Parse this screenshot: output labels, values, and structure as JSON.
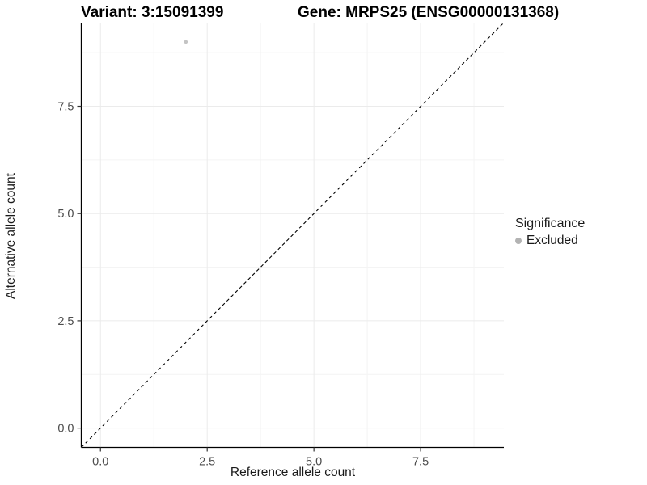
{
  "chart_data": {
    "type": "scatter",
    "title_left": "Variant: 3:15091399",
    "title_right": "Gene: MRPS25 (ENSG00000131368)",
    "xlabel": "Reference allele count",
    "ylabel": "Alternative allele count",
    "xlim": [
      -0.45,
      9.45
    ],
    "ylim": [
      -0.45,
      9.45
    ],
    "x_major_ticks": [
      0,
      2.5,
      5,
      7.5
    ],
    "x_tick_labels": [
      "0.0",
      "2.5",
      "5.0",
      "7.5"
    ],
    "y_major_ticks": [
      0,
      2.5,
      5,
      7.5
    ],
    "y_tick_labels": [
      "0.0",
      "2.5",
      "5.0",
      "7.5"
    ],
    "x_minor_ticks": [
      1.25,
      3.75,
      6.25,
      8.75
    ],
    "y_minor_ticks": [
      1.25,
      3.75,
      6.25,
      8.75
    ],
    "grid": "major+minor",
    "legend": {
      "title": "Significance",
      "position": "right",
      "items": [
        {
          "label": "Excluded",
          "color": "#b3b3b3",
          "marker": "circle"
        }
      ]
    },
    "series": [
      {
        "name": "Excluded",
        "marker": "circle",
        "color": "#c4c4c4",
        "point_radius": 2.3,
        "points": [
          [
            2,
            9
          ]
        ]
      }
    ],
    "reference_line": {
      "slope": 1,
      "intercept": 0,
      "style": "dashed",
      "color": "#000000"
    },
    "palette": {
      "background": "#ffffff",
      "axis_line": "#000000",
      "tick_mark": "#333333",
      "tick_label": "#4d4d4d",
      "grid_major": "#ebebeb",
      "grid_minor": "#f4f4f4",
      "excluded_gray": "#bebebe"
    }
  }
}
